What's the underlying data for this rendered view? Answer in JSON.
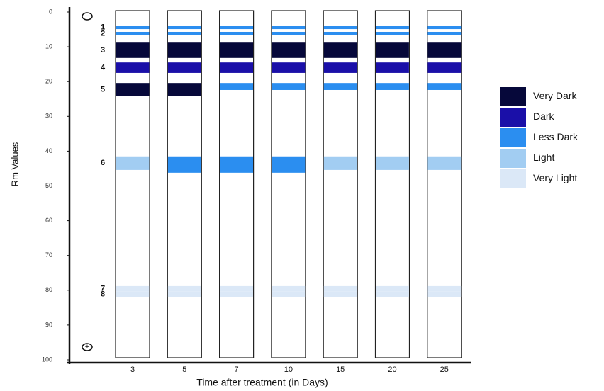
{
  "chart_data": {
    "type": "gel",
    "y_axis_label": "Rm Values",
    "x_axis_label": "Time after treatment (in Days)",
    "categories": [
      "3",
      "5",
      "7",
      "10",
      "15",
      "20",
      "25"
    ],
    "ylim": [
      0,
      100
    ],
    "yticks": [
      0,
      10,
      20,
      30,
      40,
      50,
      60,
      70,
      80,
      90,
      100
    ],
    "top_electrode": "−",
    "bottom_electrode": "+",
    "legend": [
      {
        "name": "Very Dark",
        "color": "#06083a"
      },
      {
        "name": "Dark",
        "color": "#1a0fa8"
      },
      {
        "name": "Less Dark",
        "color": "#2b8ef0"
      },
      {
        "name": "Light",
        "color": "#a2cdf2"
      },
      {
        "name": "Very Light",
        "color": "#dbe8f7"
      }
    ],
    "bands": [
      {
        "name": "1",
        "start": 3.9,
        "end": 4.9,
        "colors": [
          "#2b8ef0",
          "#2b8ef0",
          "#2b8ef0",
          "#2b8ef0",
          "#2b8ef0",
          "#2b8ef0",
          "#2b8ef0"
        ]
      },
      {
        "name": "2",
        "start": 5.7,
        "end": 6.7,
        "colors": [
          "#2b8ef0",
          "#2b8ef0",
          "#2b8ef0",
          "#2b8ef0",
          "#2b8ef0",
          "#2b8ef0",
          "#2b8ef0"
        ]
      },
      {
        "name": "3",
        "start": 8.8,
        "end": 13.2,
        "colors": [
          "#06083a",
          "#06083a",
          "#06083a",
          "#06083a",
          "#06083a",
          "#06083a",
          "#06083a"
        ]
      },
      {
        "name": "4",
        "start": 14.5,
        "end": 17.5,
        "colors": [
          "#1a0fa8",
          "#1a0fa8",
          "#1a0fa8",
          "#1a0fa8",
          "#1a0fa8",
          "#1a0fa8",
          "#1a0fa8"
        ]
      },
      {
        "name": "5",
        "start": 20.4,
        "end": [
          24.2,
          24.2,
          22.4,
          22.4,
          22.4,
          22.4,
          22.4
        ],
        "colors": [
          "#06083a",
          "#06083a",
          "#2b8ef0",
          "#2b8ef0",
          "#2b8ef0",
          "#2b8ef0",
          "#2b8ef0"
        ]
      },
      {
        "name": "6",
        "start": 41.5,
        "end": [
          45.4,
          46.2,
          46.2,
          46.2,
          45.4,
          45.4,
          45.4
        ],
        "colors": [
          "#a2cdf2",
          "#2b8ef0",
          "#2b8ef0",
          "#2b8ef0",
          "#a2cdf2",
          "#a2cdf2",
          "#a2cdf2"
        ]
      },
      {
        "name": "7",
        "start": 78.8,
        "end": 80.4,
        "colors": [
          "#dbe8f7",
          "#dbe8f7",
          "#dbe8f7",
          "#dbe8f7",
          "#dbe8f7",
          "#dbe8f7",
          "#dbe8f7"
        ]
      },
      {
        "name": "8",
        "start": 80.4,
        "end": 82,
        "colors": [
          "#dbe8f7",
          "#dbe8f7",
          "#dbe8f7",
          "#dbe8f7",
          "#dbe8f7",
          "#dbe8f7",
          "#dbe8f7"
        ]
      }
    ]
  }
}
